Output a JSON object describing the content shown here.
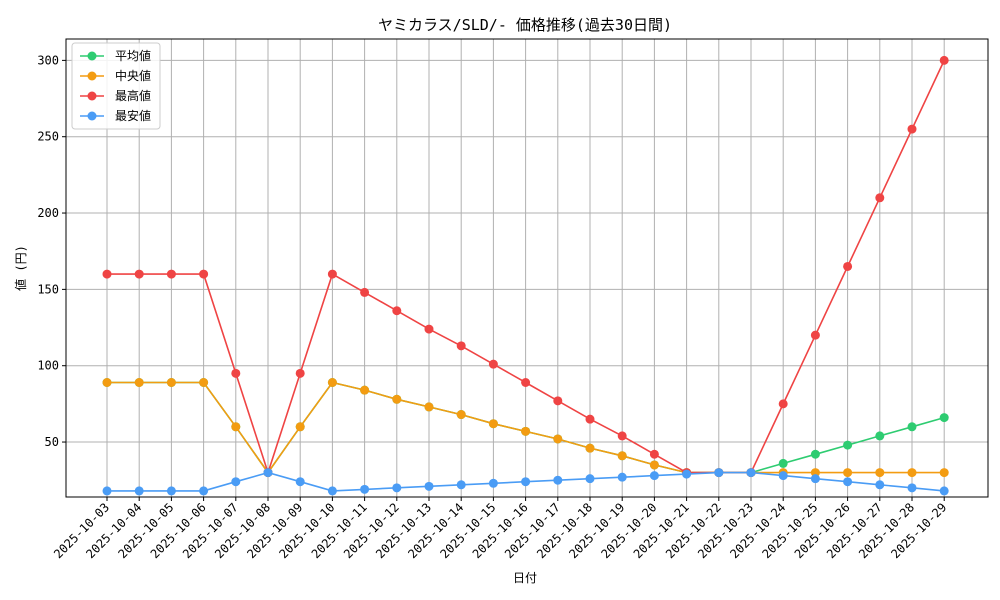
{
  "chart_data": {
    "type": "line",
    "title": "ヤミカラス/SLD/- 価格推移(過去30日間)",
    "xlabel": "日付",
    "ylabel": "値 (円)",
    "ylim": [
      14,
      314
    ],
    "yticks": [
      50,
      100,
      150,
      200,
      250,
      300
    ],
    "grid": true,
    "legend_position": "top-left",
    "categories": [
      "2025-10-03",
      "2025-10-04",
      "2025-10-05",
      "2025-10-06",
      "2025-10-07",
      "2025-10-08",
      "2025-10-09",
      "2025-10-10",
      "2025-10-11",
      "2025-10-12",
      "2025-10-13",
      "2025-10-14",
      "2025-10-15",
      "2025-10-16",
      "2025-10-17",
      "2025-10-18",
      "2025-10-19",
      "2025-10-20",
      "2025-10-21",
      "2025-10-22",
      "2025-10-23",
      "2025-10-24",
      "2025-10-25",
      "2025-10-26",
      "2025-10-27",
      "2025-10-28",
      "2025-10-29"
    ],
    "series": [
      {
        "name": "平均値",
        "color": "#2ecc71",
        "values": [
          89,
          89,
          89,
          89,
          60,
          30,
          60,
          89,
          84,
          78,
          73,
          68,
          62,
          57,
          52,
          46,
          41,
          35,
          30,
          30,
          30,
          36,
          42,
          48,
          54,
          60,
          66
        ]
      },
      {
        "name": "中央値",
        "color": "#f39c12",
        "values": [
          89,
          89,
          89,
          89,
          60,
          30,
          60,
          89,
          84,
          78,
          73,
          68,
          62,
          57,
          52,
          46,
          41,
          35,
          30,
          30,
          30,
          30,
          30,
          30,
          30,
          30,
          30
        ]
      },
      {
        "name": "最高値",
        "color": "#ef4444",
        "values": [
          160,
          160,
          160,
          160,
          95,
          30,
          95,
          160,
          148,
          136,
          124,
          113,
          101,
          89,
          77,
          65,
          54,
          42,
          30,
          30,
          30,
          75,
          120,
          165,
          210,
          255,
          300
        ]
      },
      {
        "name": "最安値",
        "color": "#4a9cf5",
        "values": [
          18,
          18,
          18,
          18,
          24,
          30,
          24,
          18,
          19,
          20,
          21,
          22,
          23,
          24,
          25,
          26,
          27,
          28,
          29,
          30,
          30,
          28,
          26,
          24,
          22,
          20,
          18
        ]
      }
    ]
  }
}
